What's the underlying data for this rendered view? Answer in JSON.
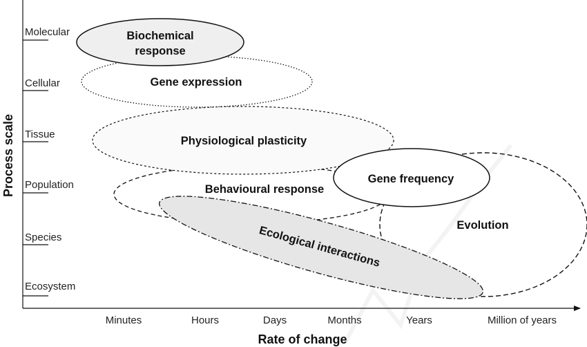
{
  "axes": {
    "y_title": "Process scale",
    "x_title": "Rate of change",
    "y_levels": [
      "Molecular",
      "Cellular",
      "Tissue",
      "Population",
      "Species",
      "Ecosystem"
    ],
    "x_levels": [
      "Minutes",
      "Hours",
      "Days",
      "Months",
      "Years",
      "Million of years"
    ]
  },
  "processes": {
    "biochemical_line1": "Biochemical",
    "biochemical_line2": "response",
    "gene_expression": "Gene expression",
    "physiological_plasticity": "Physiological plasticity",
    "behavioural_response": "Behavioural response",
    "gene_frequency": "Gene frequency",
    "ecological_interactions": "Ecological interactions",
    "evolution": "Evolution"
  },
  "colors": {
    "line": "#111111",
    "biochemical_fill": "#efefef",
    "ecological_fill": "#e6e6e6",
    "light_fill": "#fafafa"
  }
}
